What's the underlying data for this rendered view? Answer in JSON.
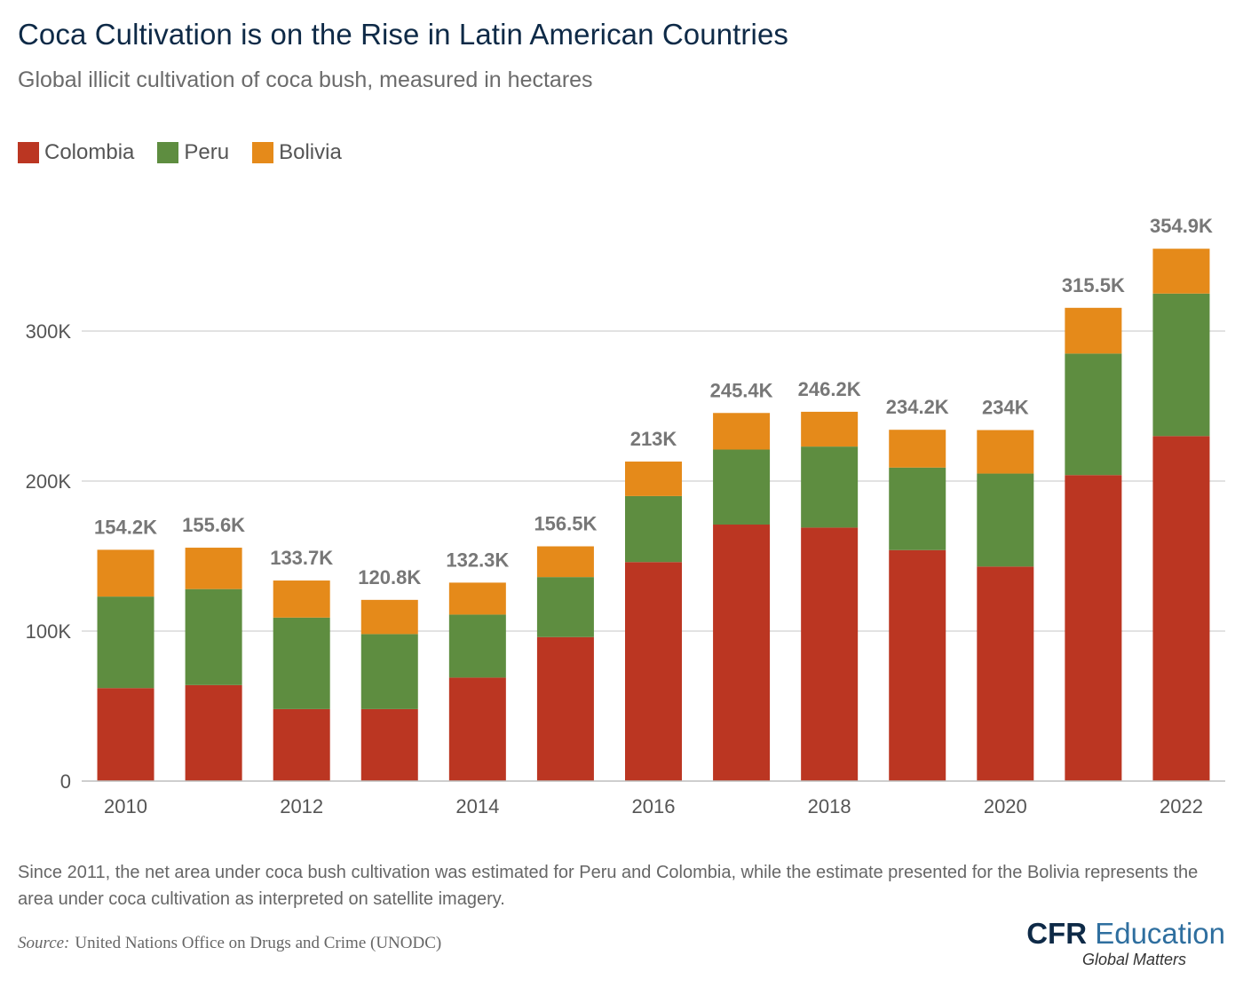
{
  "header": {
    "title": "Coca Cultivation is on the Rise in Latin American Countries",
    "subtitle": "Global illicit cultivation of coca bush, measured in hectares"
  },
  "colors": {
    "colombia": "#bb3622",
    "peru": "#5e8d40",
    "bolivia": "#e58a1a",
    "grid": "#d0d0d0",
    "axis_text": "#555555",
    "total_label": "#777777"
  },
  "chart_data": {
    "type": "bar",
    "stacked": true,
    "x": [
      2010,
      2011,
      2012,
      2013,
      2014,
      2015,
      2016,
      2017,
      2018,
      2019,
      2020,
      2021,
      2022
    ],
    "x_tick_labels": [
      "2010",
      "",
      "2012",
      "",
      "2014",
      "",
      "2016",
      "",
      "2018",
      "",
      "2020",
      "",
      "2022"
    ],
    "series": [
      {
        "name": "Colombia",
        "color": "#bb3622",
        "values": [
          62000,
          64000,
          48000,
          48000,
          69000,
          96000,
          146000,
          171000,
          169000,
          154000,
          143000,
          204000,
          230000
        ]
      },
      {
        "name": "Peru",
        "color": "#5e8d40",
        "values": [
          61000,
          64000,
          61000,
          50000,
          42000,
          40000,
          44000,
          50000,
          54000,
          55000,
          62000,
          81000,
          95000
        ]
      },
      {
        "name": "Bolivia",
        "color": "#e58a1a",
        "values": [
          31200,
          27600,
          24700,
          22800,
          21300,
          20500,
          23000,
          24400,
          23200,
          25200,
          29000,
          30500,
          29900
        ]
      }
    ],
    "totals": [
      154200,
      155600,
      133700,
      120800,
      132300,
      156500,
      213000,
      245400,
      246200,
      234200,
      234000,
      315500,
      354900
    ],
    "total_labels": [
      "154.2K",
      "155.6K",
      "133.7K",
      "120.8K",
      "132.3K",
      "156.5K",
      "213K",
      "245.4K",
      "246.2K",
      "234.2K",
      "234K",
      "315.5K",
      "354.9K"
    ],
    "y_ticks": [
      0,
      100000,
      200000,
      300000
    ],
    "y_tick_labels": [
      "0",
      "100K",
      "200K",
      "300K"
    ],
    "ylim": [
      0,
      360000
    ],
    "grid": true,
    "legend_position": "top-left"
  },
  "footer": {
    "note": "Since 2011, the net area under coca bush cultivation was estimated for Peru and Colombia, while the estimate presented for the Bolivia represents the area under coca cultivation as interpreted on satellite imagery.",
    "source_label": "Source:",
    "source_text": "United Nations Office on Drugs and Crime (UNODC)"
  },
  "logo": {
    "cfr": "CFR",
    "education": "Education",
    "tagline": "Global Matters"
  }
}
